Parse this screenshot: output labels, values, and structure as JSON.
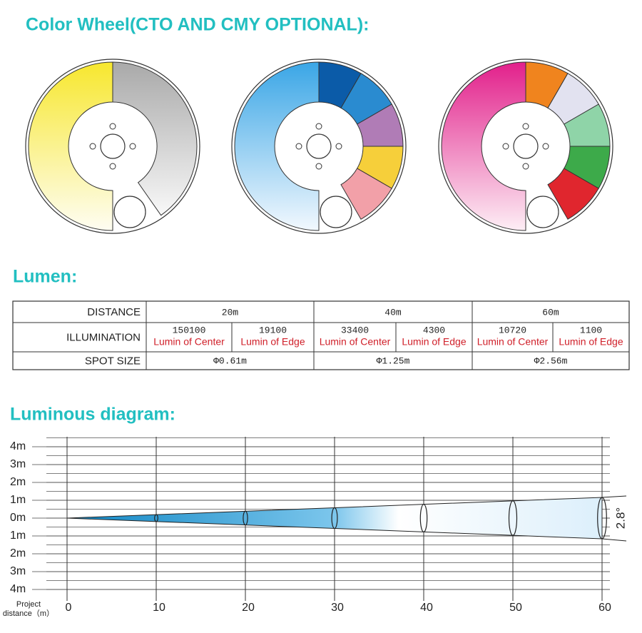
{
  "color_wheel": {
    "title": "Color Wheel(CTO AND CMY OPTIONAL):"
  },
  "lumen": {
    "title": "Lumen:",
    "table": {
      "distance": {
        "label": "DISTANCE",
        "cells": [
          "20m",
          "40m",
          "60m"
        ]
      },
      "illumination": {
        "label": "ILLUMINATION",
        "cells": [
          {
            "value": 150100,
            "caption": "Lumin of Center"
          },
          {
            "value": 19100,
            "caption": "Lumin of Edge"
          },
          {
            "value": 33400,
            "caption": "Lumin of Center"
          },
          {
            "value": 4300,
            "caption": "Lumin of Edge"
          },
          {
            "value": 10720,
            "caption": "Lumin of Center"
          },
          {
            "value": 1100,
            "caption": "Lumin of Edge"
          }
        ]
      },
      "spot_size": {
        "label": "SPOT SIZE",
        "cells": [
          "Φ0.61m",
          "Φ1.25m",
          "Φ2.56m"
        ]
      }
    }
  },
  "luminous_diagram": {
    "title": "Luminous diagram:",
    "y_labels": [
      "4m",
      "3m",
      "2m",
      "1m",
      "0m",
      "1m",
      "2m",
      "3m",
      "4m"
    ],
    "x_labels": [
      0,
      10,
      20,
      30,
      40,
      50,
      60
    ],
    "x_axis_label": [
      "Project",
      "distance（m）"
    ],
    "beam_angle": "2.8°"
  }
}
